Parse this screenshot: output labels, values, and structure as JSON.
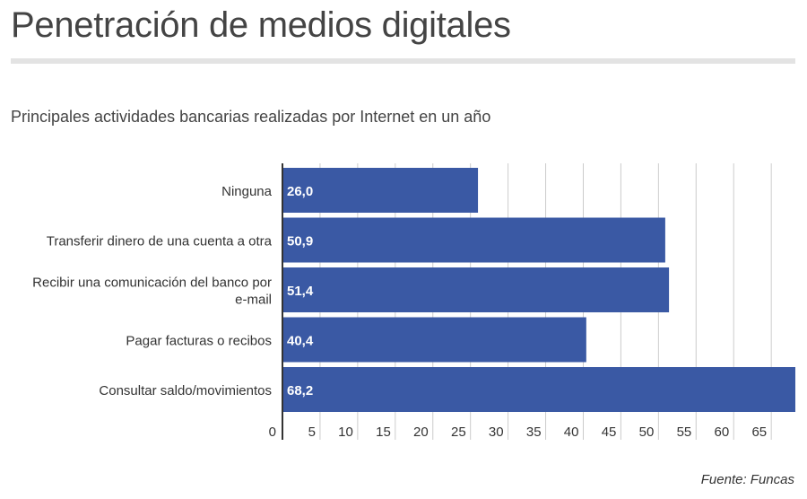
{
  "header": {
    "title": "Penetración de medios digitales",
    "subtitle": "Principales actividades bancarias realizadas por Internet en un año"
  },
  "footer": {
    "source": "Fuente: Funcas"
  },
  "colors": {
    "bar": "#3a59a4",
    "grid": "#cccccc",
    "axis": "#333333",
    "bar_label": "#ffffff"
  },
  "chart_data": {
    "type": "bar",
    "orientation": "horizontal",
    "title": "Principales actividades bancarias realizadas por Internet en un año",
    "categories": [
      [
        "Ninguna"
      ],
      [
        "Transferir dinero de una cuenta a otra"
      ],
      [
        "Recibir una comunicación del banco por",
        "e-mail"
      ],
      [
        "Pagar facturas o recibos"
      ],
      [
        "Consultar saldo/movimientos"
      ]
    ],
    "values": [
      26.0,
      50.9,
      51.4,
      40.4,
      68.2
    ],
    "value_labels": [
      "26,0",
      "50,9",
      "51,4",
      "40,4",
      "68,2"
    ],
    "xlim": [
      0,
      68.2
    ],
    "xticks": [
      0,
      5,
      10,
      15,
      20,
      25,
      30,
      35,
      40,
      45,
      50,
      55,
      60,
      65
    ],
    "xlabel": "",
    "ylabel": "",
    "grid": true
  }
}
